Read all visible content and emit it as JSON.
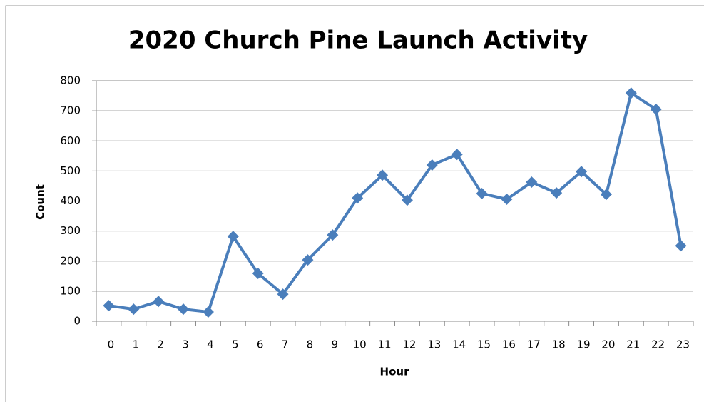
{
  "chart_data": {
    "type": "line",
    "title": "2020 Church Pine Launch Activity",
    "x_label": "Hour",
    "y_label": "Count",
    "categories": [
      "0",
      "1",
      "2",
      "3",
      "4",
      "5",
      "6",
      "7",
      "8",
      "9",
      "10",
      "11",
      "12",
      "13",
      "14",
      "15",
      "16",
      "17",
      "18",
      "19",
      "20",
      "21",
      "22",
      "23"
    ],
    "series": [
      {
        "name": "Count",
        "color": "#4a7ebb",
        "values": [
          52,
          40,
          66,
          40,
          31,
          282,
          159,
          90,
          204,
          287,
          410,
          486,
          403,
          520,
          555,
          425,
          406,
          463,
          427,
          498,
          422,
          759,
          705,
          251
        ]
      }
    ],
    "ylim": [
      0,
      800
    ],
    "yticks": [
      0,
      100,
      200,
      300,
      400,
      500,
      600,
      700,
      800
    ],
    "grid": true
  }
}
